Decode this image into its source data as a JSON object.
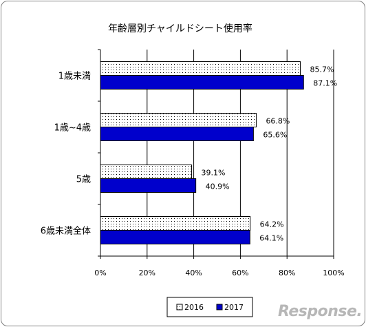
{
  "chart_data": {
    "type": "bar",
    "orientation": "horizontal",
    "title": "年齢層別チャイルドシート使用率",
    "categories": [
      "1歳未満",
      "1歳~4歳",
      "5歳",
      "6歳未満全体"
    ],
    "series": [
      {
        "name": "2016",
        "values": [
          85.7,
          66.8,
          39.1,
          64.2
        ],
        "labels": [
          "85.7%",
          "66.8%",
          "39.1%",
          "64.2%"
        ],
        "fill": "dotted"
      },
      {
        "name": "2017",
        "values": [
          87.1,
          65.6,
          40.9,
          64.1
        ],
        "labels": [
          "87.1%",
          "65.6%",
          "40.9%",
          "64.1%"
        ],
        "color": "#0000cc"
      }
    ],
    "xlim": [
      0,
      100
    ],
    "xticks": [
      "0%",
      "20%",
      "40%",
      "60%",
      "80%",
      "100%"
    ],
    "grid": true,
    "legend_position": "bottom"
  },
  "watermark": "Response."
}
